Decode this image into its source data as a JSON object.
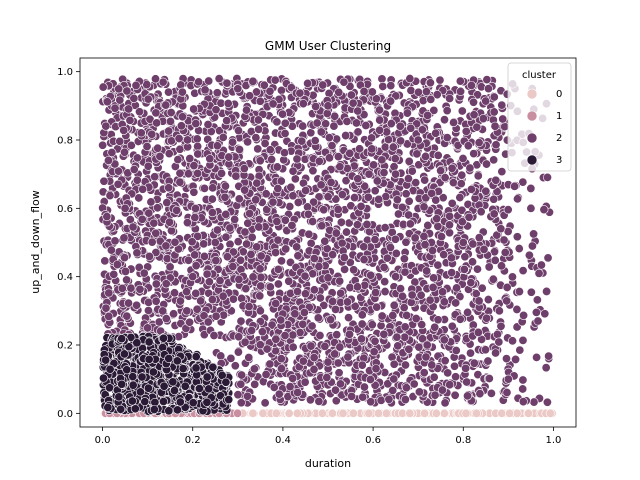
{
  "chart_data": {
    "type": "scatter",
    "title": "GMM User Clustering",
    "xlabel": "duration",
    "ylabel": "up_and_down_flow",
    "xlim": [
      -0.05,
      1.05
    ],
    "ylim": [
      -0.04,
      1.04
    ],
    "x_ticks": [
      "0.0",
      "0.2",
      "0.4",
      "0.6",
      "0.8",
      "1.0"
    ],
    "y_ticks": [
      "0.0",
      "0.2",
      "0.4",
      "0.6",
      "0.8",
      "1.0"
    ],
    "x_tick_values": [
      0.0,
      0.2,
      0.4,
      0.6,
      0.8,
      1.0
    ],
    "y_tick_values": [
      0.0,
      0.2,
      0.4,
      0.6,
      0.8,
      1.0
    ],
    "grid": false,
    "legend": {
      "title": "cluster",
      "placement": "top-right",
      "entries": [
        "0",
        "1",
        "2",
        "3"
      ]
    },
    "series": [
      {
        "name": "0",
        "color": "#ebc9c6",
        "distribution": "flow ≈ 0, duration 0–1",
        "x": [
          0.02,
          0.08,
          0.15,
          0.21,
          0.28,
          0.33,
          0.38,
          0.44,
          0.5,
          0.55,
          0.6,
          0.66,
          0.71,
          0.77,
          0.82,
          0.87,
          0.9,
          0.93,
          0.96,
          0.99
        ],
        "y": [
          0.0,
          0.0,
          0.0,
          0.0,
          0.0,
          0.0,
          0.0,
          0.0,
          0.0,
          0.0,
          0.0,
          0.0,
          0.0,
          0.0,
          0.0,
          0.0,
          0.0,
          0.0,
          0.0,
          0.0
        ]
      },
      {
        "name": "1",
        "color": "#c98fa1",
        "distribution": "flow ≈ 0, duration 0–0.3",
        "x": [
          0.0,
          0.02,
          0.04,
          0.06,
          0.08,
          0.1,
          0.12,
          0.14,
          0.16,
          0.18,
          0.2,
          0.22,
          0.24,
          0.26,
          0.28
        ],
        "y": [
          0.0,
          0.0,
          0.0,
          0.0,
          0.0,
          0.0,
          0.0,
          0.0,
          0.0,
          0.0,
          0.0,
          0.0,
          0.0,
          0.0,
          0.0
        ]
      },
      {
        "name": "2",
        "color": "#6f3f6c",
        "distribution": "dense cloud: duration 0–1, flow 0.05–0.98, thinning toward high duration",
        "x": [
          0.05,
          0.12,
          0.2,
          0.28,
          0.35,
          0.42,
          0.5,
          0.58,
          0.65,
          0.72,
          0.8,
          0.88,
          0.95,
          0.1,
          0.3,
          0.5,
          0.7,
          0.9,
          0.25,
          0.45,
          0.65,
          0.85
        ],
        "y": [
          0.6,
          0.85,
          0.4,
          0.75,
          0.3,
          0.55,
          0.9,
          0.45,
          0.7,
          0.2,
          0.5,
          0.3,
          0.6,
          0.25,
          0.95,
          0.15,
          0.8,
          0.1,
          0.5,
          0.35,
          0.4,
          0.65
        ]
      },
      {
        "name": "3",
        "color": "#2a1a36",
        "distribution": "compact cluster: duration 0–0.28, flow 0–0.22",
        "x": [
          0.02,
          0.05,
          0.08,
          0.1,
          0.12,
          0.15,
          0.18,
          0.2,
          0.22,
          0.25,
          0.28,
          0.06,
          0.14
        ],
        "y": [
          0.05,
          0.12,
          0.18,
          0.08,
          0.2,
          0.15,
          0.1,
          0.06,
          0.12,
          0.05,
          0.08,
          0.02,
          0.21
        ]
      }
    ]
  }
}
